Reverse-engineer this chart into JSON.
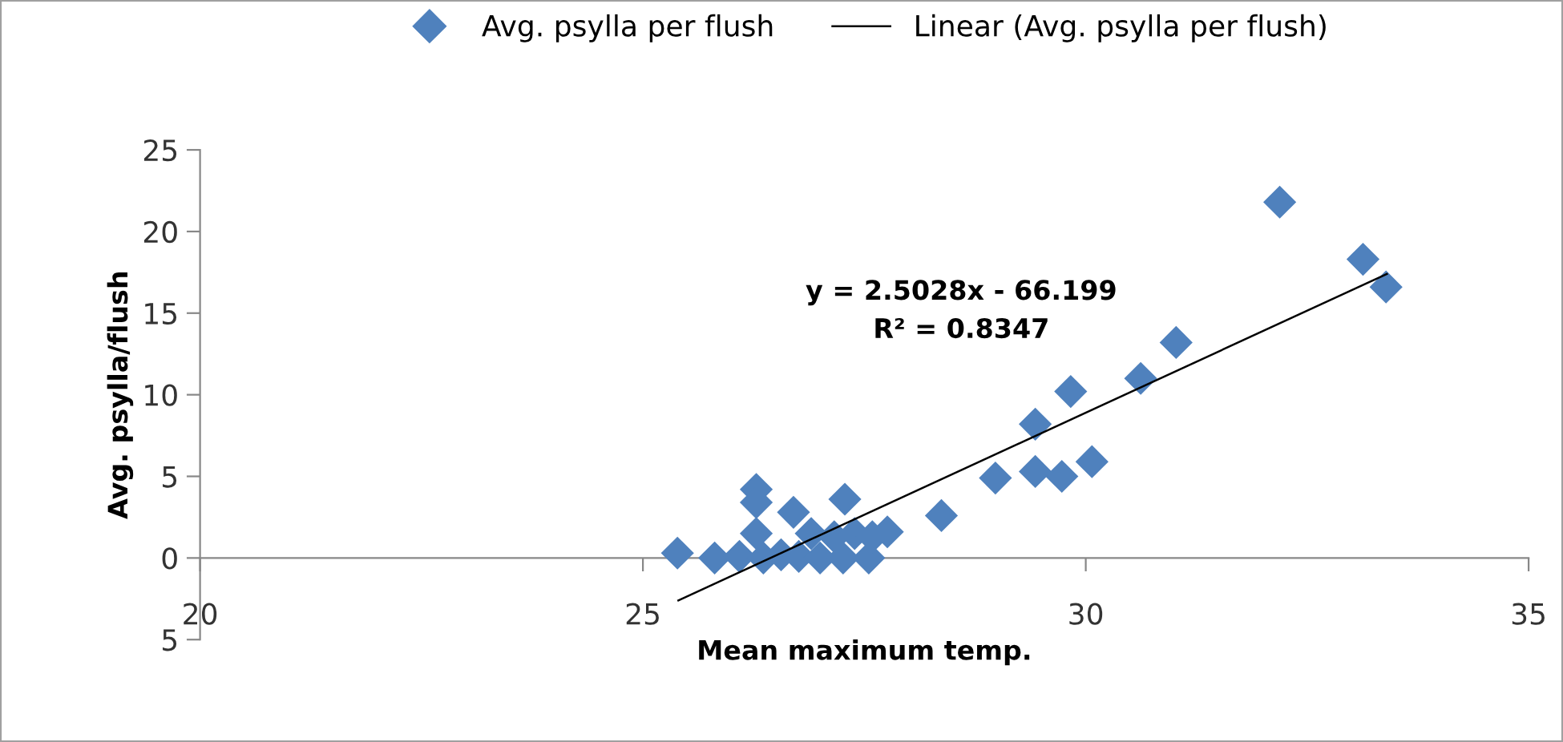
{
  "chart_data": {
    "type": "scatter",
    "xlabel": "Mean maximum temp.",
    "ylabel": "Avg. psylla/flush",
    "xlim": [
      20,
      35
    ],
    "ylim": [
      -5,
      25
    ],
    "xticks": [
      20,
      25,
      30,
      35
    ],
    "yticks": [
      {
        "value": -5,
        "label": "5"
      },
      0,
      5,
      10,
      15,
      20,
      25
    ],
    "grid": false,
    "legend": "top",
    "annotations": [
      "y = 2.5028x - 66.199\nR² = 0.8347"
    ],
    "series": [
      {
        "name": "Avg. psylla per flush",
        "color": "#4f81bd",
        "marker": "diamond",
        "x": [
          25.39,
          25.81,
          26.09,
          26.28,
          26.28,
          26.28,
          26.36,
          26.56,
          26.7,
          26.76,
          26.9,
          27.0,
          27.16,
          27.28,
          27.26,
          27.39,
          27.55,
          27.59,
          27.76,
          28.37,
          28.98,
          29.43,
          29.43,
          29.73,
          29.83,
          30.07,
          30.62,
          31.02,
          32.19,
          33.13,
          33.39
        ],
        "values": [
          0.3,
          0,
          0.1,
          4.2,
          3.4,
          1.5,
          0,
          0.2,
          2.8,
          0.1,
          1.5,
          0,
          1.3,
          3.6,
          0,
          1.5,
          0,
          1.3,
          1.6,
          2.6,
          4.9,
          8.2,
          5.3,
          5.0,
          10.2,
          5.9,
          11.0,
          13.2,
          21.8,
          18.3,
          16.6
        ]
      },
      {
        "name": "Linear (Avg. psylla per flush)",
        "type": "line",
        "color": "#000000",
        "marker": "none",
        "line_style": "solid",
        "x": [
          25.4,
          33.4
        ],
        "values": [
          -2.6,
          17.4
        ]
      }
    ]
  }
}
